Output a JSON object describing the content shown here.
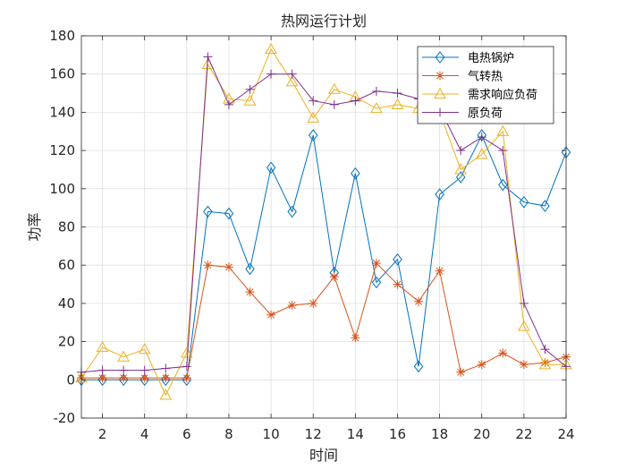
{
  "chart_data": {
    "type": "line",
    "title": "热网运行计划",
    "xlabel": "时间",
    "ylabel": "功率",
    "xlim": [
      1,
      24
    ],
    "ylim": [
      -20,
      180
    ],
    "xticks": [
      2,
      4,
      6,
      8,
      10,
      12,
      14,
      16,
      18,
      20,
      22,
      24
    ],
    "yticks": [
      -20,
      0,
      20,
      40,
      60,
      80,
      100,
      120,
      140,
      160,
      180
    ],
    "grid": true,
    "legend_position": "top-right",
    "x": [
      1,
      2,
      3,
      4,
      5,
      6,
      7,
      8,
      9,
      10,
      11,
      12,
      13,
      14,
      15,
      16,
      17,
      18,
      19,
      20,
      21,
      22,
      23,
      24
    ],
    "series": [
      {
        "name": "电热锅炉",
        "color": "#0072BD",
        "marker": "diamond",
        "values": [
          0,
          0,
          0,
          0,
          0,
          0,
          88,
          87,
          58,
          111,
          88,
          128,
          56,
          108,
          51,
          63,
          7,
          97,
          106,
          128,
          102,
          93,
          91,
          119
        ]
      },
      {
        "name": "气转热",
        "color": "#D95319",
        "marker": "asterisk",
        "values": [
          1,
          1,
          1,
          1,
          1,
          1,
          60,
          59,
          46,
          34,
          39,
          40,
          54,
          22,
          61,
          50,
          41,
          57,
          4,
          8,
          14,
          8,
          9,
          12
        ]
      },
      {
        "name": "需求响应负荷",
        "color": "#EDB120",
        "marker": "triangle",
        "values": [
          1,
          17,
          12,
          16,
          -8,
          14,
          165,
          147,
          146,
          173,
          156,
          137,
          152,
          148,
          142,
          144,
          142,
          140,
          110,
          118,
          130,
          28,
          8,
          8
        ]
      },
      {
        "name": "原负荷",
        "color": "#7E2F8E",
        "marker": "plus",
        "values": [
          4,
          5,
          5,
          5,
          6,
          7,
          169,
          144,
          152,
          160,
          160,
          146,
          144,
          146,
          151,
          150,
          147,
          142,
          120,
          127,
          120,
          40,
          16,
          7
        ]
      }
    ]
  }
}
